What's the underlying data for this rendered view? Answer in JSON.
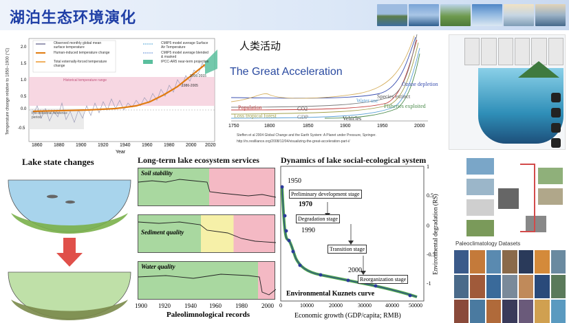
{
  "header": {
    "title": "湖泊生态环境演化",
    "thumb_colors": [
      "#6f8fb5",
      "#4f7aa8",
      "#7aa05c",
      "#6a9fcf",
      "#b7c9d8",
      "#9fb3c5"
    ]
  },
  "temp_chart": {
    "ylabel": "Temperature change relative to 1850–1900 (°C)",
    "xlabel": "Year",
    "xticks": [
      "1860",
      "1880",
      "1900",
      "1920",
      "1940",
      "1960",
      "1980",
      "2000",
      "2020"
    ],
    "yticks": [
      "2.0",
      "1.5",
      "1.0",
      "0.5",
      "0.0",
      "-0.5"
    ],
    "legend": {
      "obs": "Observed monthly global mean surface temperature",
      "human": "Human-induced temperature change",
      "total": "Total externally-forced temperature change",
      "cmip_sat": "CMIP5 model average Surface Air Temperature",
      "cmip_blend": "CMIP5 model average blended & masked",
      "ipcc": "IPCC-AR5 near-term projection"
    },
    "annotations": {
      "natural": "Historical temperature range",
      "preind": "Pre-industrial reference period",
      "p1": "2006-2015",
      "p2": "1986-2005"
    }
  },
  "acceleration": {
    "subtitle": "人类活动",
    "title": "The Great Acceleration",
    "labels": [
      "Population",
      "CO2",
      "Loss tropical forest",
      "GDP",
      "Water use",
      "Ozone depletion",
      "Species extinct",
      "Fisheries exploited",
      "Vehicles"
    ],
    "xticks": [
      "1750",
      "1800",
      "1850",
      "1900",
      "1950",
      "2000"
    ],
    "citation_line1": "Steffen et al 2004 Global Change and the Earth System: A Planet under Pressure, Springer.",
    "citation_line2": "http://rs.resilliance.org/2008/12/04/visualizing-the-great-acceleration-part-i/"
  },
  "lake_state": {
    "title": "Lake state changes"
  },
  "services": {
    "title": "Long-term lake ecosystem services",
    "panels": [
      "Soil stability",
      "Sediment quality",
      "Water quality"
    ],
    "xticks": [
      "1900",
      "1920",
      "1940",
      "1960",
      "1980",
      "2000"
    ],
    "xlabel": "Paleolimnological records"
  },
  "dynamics": {
    "title": "Dynamics of lake social-ecological system",
    "stages": [
      "Preliminary development stage",
      "Degradation stage",
      "Transition stage",
      "Reorganization stage"
    ],
    "years": [
      "1950",
      "1970",
      "1990",
      "2000"
    ],
    "curve_label": "Environmental Kuznets curve",
    "xlabel": "Economic growth (GDP/capita; RMB)",
    "ylabel": "Environmental degradation (RS)",
    "xticks": [
      "0",
      "10000",
      "20000",
      "30000",
      "40000",
      "50000"
    ],
    "yticks": [
      "1",
      "0.5",
      "0",
      "-0.5",
      "-1"
    ]
  },
  "paleo": {
    "title": "Paleoclimatology Datasets"
  }
}
